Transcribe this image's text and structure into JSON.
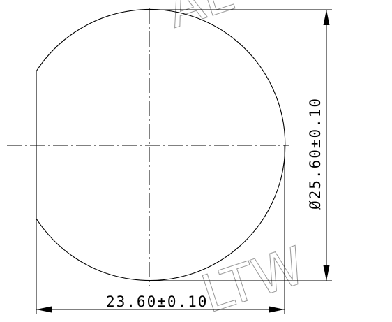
{
  "watermark": {
    "top_text": "AL",
    "bottom_text": "LTW"
  },
  "dimensions": {
    "diameter_label": "Ø25.60±0.10",
    "width_label": "23.60±0.10"
  },
  "part": {
    "type": "truncated-ball",
    "diameter_mm": 25.6,
    "diameter_tolerance_mm": 0.1,
    "truncated_width_mm": 23.6,
    "width_tolerance_mm": 0.1
  }
}
